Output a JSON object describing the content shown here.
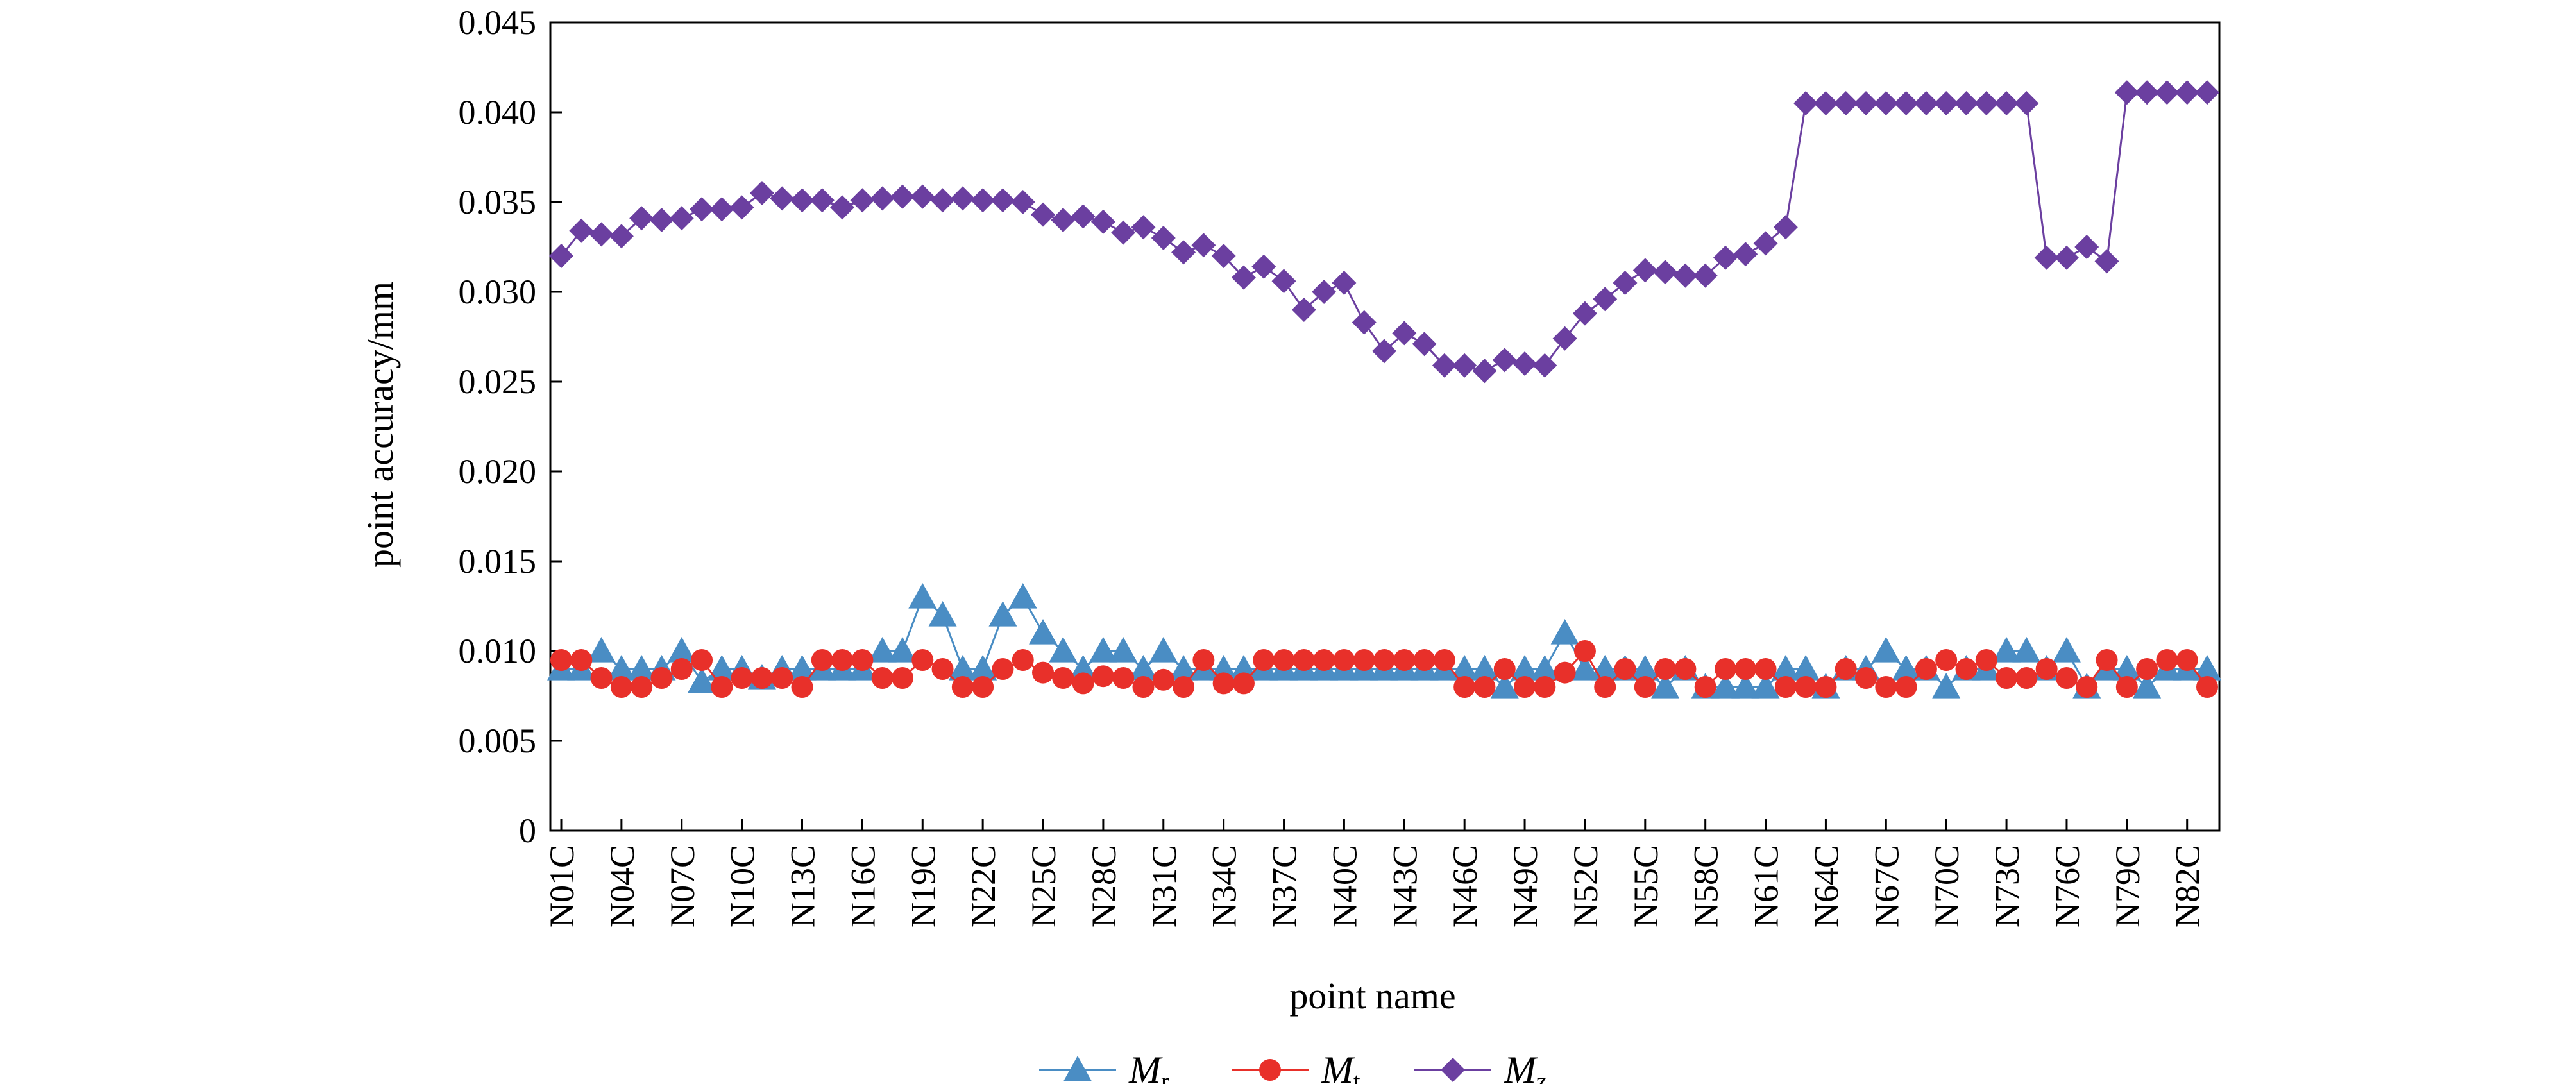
{
  "chart_data": {
    "type": "line",
    "title": "",
    "xlabel": "point name",
    "ylabel": "point accuracy/mm",
    "ylim": [
      0,
      0.045
    ],
    "yticks": [
      "0",
      "0.005",
      "0.010",
      "0.015",
      "0.020",
      "0.025",
      "0.030",
      "0.035",
      "0.040",
      "0.045"
    ],
    "ytick_values": [
      0,
      0.005,
      0.01,
      0.015,
      0.02,
      0.025,
      0.03,
      0.035,
      0.04,
      0.045
    ],
    "x": [
      "N01C",
      "N02C",
      "N03C",
      "N04C",
      "N05C",
      "N06C",
      "N07C",
      "N08C",
      "N09C",
      "N10C",
      "N11C",
      "N12C",
      "N13C",
      "N14C",
      "N15C",
      "N16C",
      "N17C",
      "N18C",
      "N19C",
      "N20C",
      "N21C",
      "N22C",
      "N23C",
      "N24C",
      "N25C",
      "N26C",
      "N27C",
      "N28C",
      "N29C",
      "N30C",
      "N31C",
      "N32C",
      "N33C",
      "N34C",
      "N35C",
      "N36C",
      "N37C",
      "N38C",
      "N39C",
      "N40C",
      "N41C",
      "N42C",
      "N43C",
      "N44C",
      "N45C",
      "N46C",
      "N47C",
      "N48C",
      "N49C",
      "N50C",
      "N51C",
      "N52C",
      "N53C",
      "N54C",
      "N55C",
      "N56C",
      "N57C",
      "N58C",
      "N59C",
      "N60C",
      "N61C",
      "N62C",
      "N63C",
      "N64C",
      "N65C",
      "N66C",
      "N67C",
      "N68C",
      "N69C",
      "N70C",
      "N71C",
      "N72C",
      "N73C",
      "N74C",
      "N75C",
      "N76C",
      "N77C",
      "N78C",
      "N79C",
      "N80C",
      "N81C",
      "N82C",
      "N83C"
    ],
    "xtick_labels_shown": [
      "N01C",
      "N04C",
      "N07C",
      "N10C",
      "N13C",
      "N16C",
      "N19C",
      "N22C",
      "N25C",
      "N28C",
      "N31C",
      "N34C",
      "N37C",
      "N40C",
      "N43C",
      "N46C",
      "N49C",
      "N52C",
      "N55C",
      "N58C",
      "N61C",
      "N64C",
      "N67C",
      "N70C",
      "N73C",
      "N76C",
      "N79C",
      "N82C"
    ],
    "grid": false,
    "legend_position": "bottom-center",
    "series": [
      {
        "name": "M",
        "subscript": "r",
        "color": "#4a8dc4",
        "marker": "triangle",
        "values": [
          0.009,
          0.009,
          0.01,
          0.009,
          0.009,
          0.009,
          0.01,
          0.0083,
          0.009,
          0.009,
          0.0085,
          0.009,
          0.009,
          0.009,
          0.009,
          0.009,
          0.01,
          0.01,
          0.013,
          0.012,
          0.009,
          0.009,
          0.012,
          0.013,
          0.011,
          0.01,
          0.009,
          0.01,
          0.01,
          0.009,
          0.01,
          0.009,
          0.009,
          0.009,
          0.009,
          0.009,
          0.009,
          0.009,
          0.009,
          0.009,
          0.009,
          0.009,
          0.009,
          0.009,
          0.009,
          0.009,
          0.009,
          0.008,
          0.009,
          0.009,
          0.011,
          0.009,
          0.009,
          0.009,
          0.009,
          0.008,
          0.009,
          0.008,
          0.008,
          0.008,
          0.008,
          0.009,
          0.009,
          0.008,
          0.009,
          0.009,
          0.01,
          0.009,
          0.009,
          0.008,
          0.009,
          0.009,
          0.01,
          0.01,
          0.009,
          0.01,
          0.008,
          0.009,
          0.009,
          0.008,
          0.009,
          0.009,
          0.009
        ]
      },
      {
        "name": "M",
        "subscript": "t",
        "color": "#e8302a",
        "marker": "circle",
        "values": [
          0.0095,
          0.0095,
          0.0085,
          0.008,
          0.008,
          0.0085,
          0.009,
          0.0095,
          0.008,
          0.0085,
          0.0085,
          0.0085,
          0.008,
          0.0095,
          0.0095,
          0.0095,
          0.0085,
          0.0085,
          0.0095,
          0.009,
          0.008,
          0.008,
          0.009,
          0.0095,
          0.0088,
          0.0085,
          0.0082,
          0.0086,
          0.0085,
          0.008,
          0.0084,
          0.008,
          0.0095,
          0.0082,
          0.0082,
          0.0095,
          0.0095,
          0.0095,
          0.0095,
          0.0095,
          0.0095,
          0.0095,
          0.0095,
          0.0095,
          0.0095,
          0.008,
          0.008,
          0.009,
          0.008,
          0.008,
          0.0088,
          0.01,
          0.008,
          0.009,
          0.008,
          0.009,
          0.009,
          0.008,
          0.009,
          0.009,
          0.009,
          0.008,
          0.008,
          0.008,
          0.009,
          0.0085,
          0.008,
          0.008,
          0.009,
          0.0095,
          0.009,
          0.0095,
          0.0085,
          0.0085,
          0.009,
          0.0085,
          0.008,
          0.0095,
          0.008,
          0.009,
          0.0095,
          0.0095,
          0.008
        ]
      },
      {
        "name": "M",
        "subscript": "z",
        "color": "#6b3fa0",
        "marker": "diamond",
        "values": [
          0.032,
          0.0334,
          0.0332,
          0.0331,
          0.0341,
          0.034,
          0.0341,
          0.0346,
          0.0346,
          0.0347,
          0.0355,
          0.0352,
          0.0351,
          0.0351,
          0.0347,
          0.0351,
          0.0352,
          0.0353,
          0.0353,
          0.0351,
          0.0352,
          0.0351,
          0.0351,
          0.035,
          0.0343,
          0.034,
          0.0342,
          0.0339,
          0.0333,
          0.0336,
          0.033,
          0.0322,
          0.0326,
          0.032,
          0.0308,
          0.0314,
          0.0306,
          0.029,
          0.03,
          0.0305,
          0.0283,
          0.0267,
          0.0277,
          0.0271,
          0.0259,
          0.0259,
          0.0256,
          0.0262,
          0.026,
          0.0259,
          0.0274,
          0.0288,
          0.0296,
          0.0305,
          0.0312,
          0.0311,
          0.0309,
          0.0309,
          0.0319,
          0.0321,
          0.0327,
          0.0336,
          0.0405,
          0.0405,
          0.0405,
          0.0405,
          0.0405,
          0.0405,
          0.0405,
          0.0405,
          0.0405,
          0.0405,
          0.0405,
          0.0405,
          0.0319,
          0.0319,
          0.0325,
          0.0317,
          0.0411,
          0.0411,
          0.0411,
          0.0411,
          0.0411
        ]
      }
    ]
  }
}
